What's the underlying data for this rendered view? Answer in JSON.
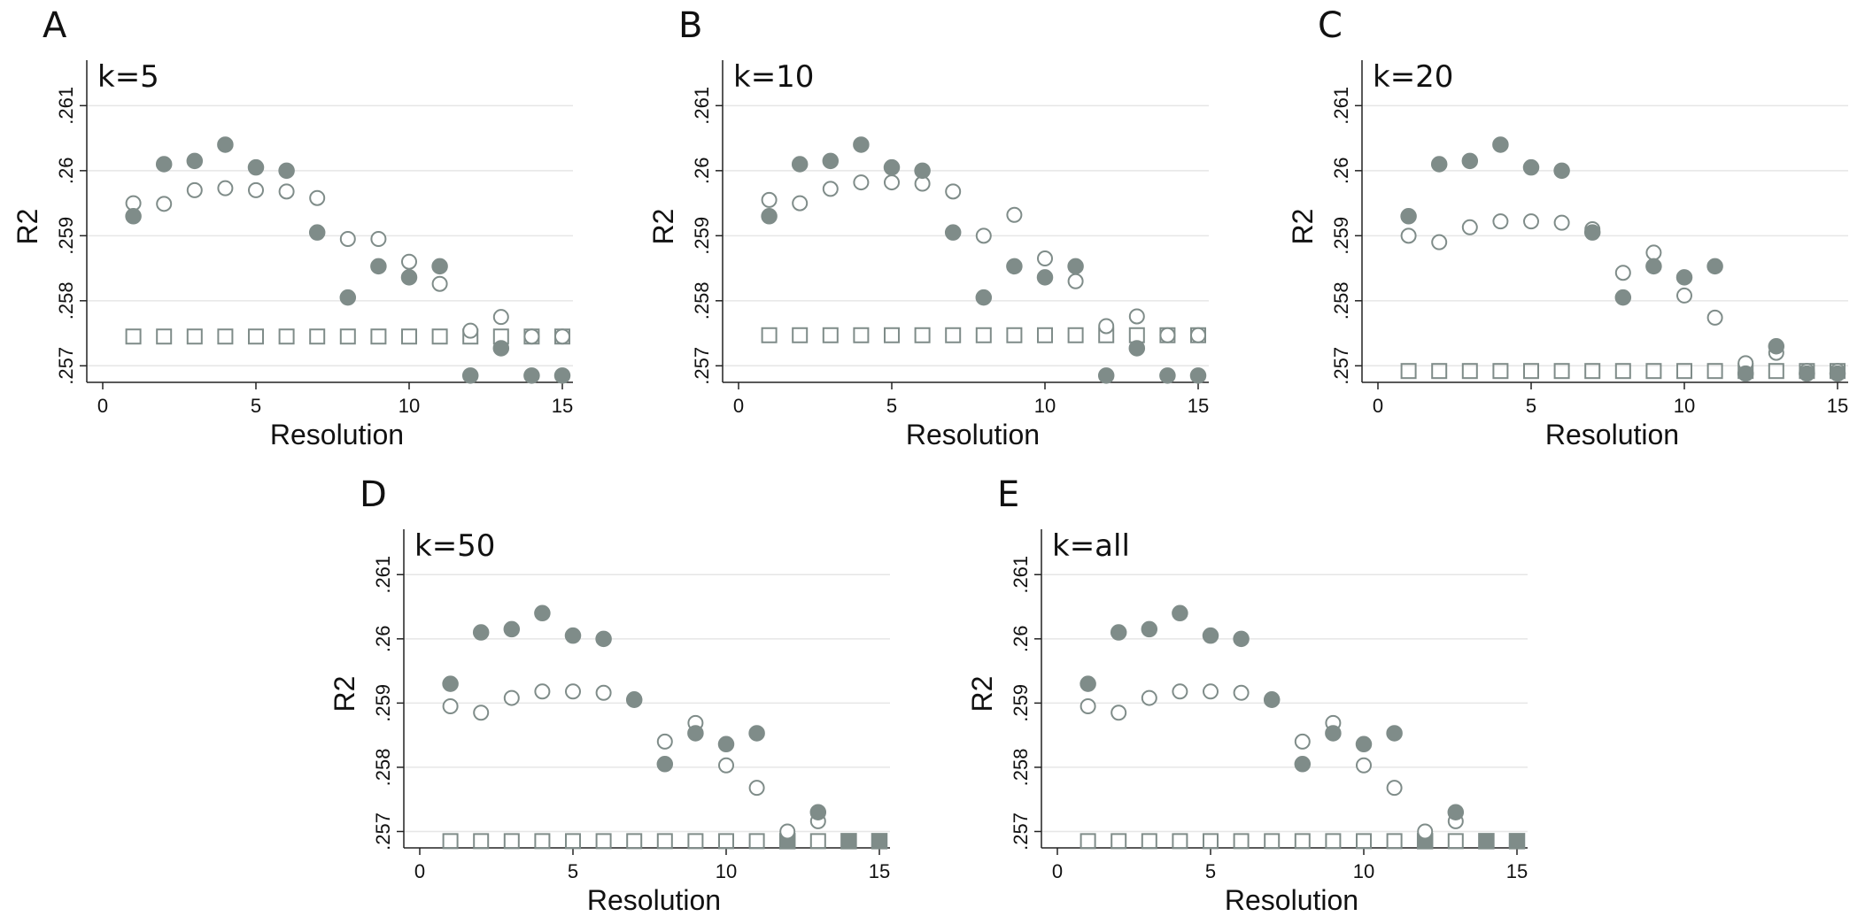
{
  "chart_data": [
    {
      "type": "scatter",
      "panel_label": "A",
      "title": "k=5",
      "xlabel": "Resolution",
      "ylabel": "R2",
      "xlim": [
        0,
        15
      ],
      "ylim": [
        0.2568,
        0.2611
      ],
      "xticks": [
        0,
        5,
        10,
        15
      ],
      "xtick_labels": [
        "0",
        "5",
        "10",
        "15"
      ],
      "yticks": [
        0.257,
        0.258,
        0.259,
        0.26,
        0.261
      ],
      "ytick_labels": [
        ".257",
        ".258",
        ".259",
        ".26",
        ".261"
      ],
      "x": [
        1,
        2,
        3,
        4,
        5,
        6,
        7,
        8,
        9,
        10,
        11,
        12,
        13,
        14,
        15
      ],
      "series": [
        {
          "name": "filled circle",
          "marker": "circle-filled",
          "values": [
            0.2593,
            0.2601,
            0.26015,
            0.2604,
            0.26005,
            0.26,
            0.25905,
            0.25805,
            0.25853,
            0.25836,
            0.25853,
            0.25685,
            0.25727,
            0.25685,
            0.25685
          ]
        },
        {
          "name": "open circle",
          "marker": "circle-open",
          "values": [
            0.2595,
            0.25949,
            0.2597,
            0.25973,
            0.2597,
            0.25968,
            0.25958,
            0.25895,
            0.25895,
            0.2586,
            0.25826,
            0.25754,
            0.25775,
            0.25745,
            0.25745
          ]
        },
        {
          "name": "open square",
          "marker": "square-open",
          "values": [
            0.25745,
            0.25745,
            0.25745,
            0.25745,
            0.25745,
            0.25745,
            0.25745,
            0.25745,
            0.25745,
            0.25745,
            0.25745,
            0.25745,
            0.25745,
            0.25745,
            0.25745
          ]
        }
      ]
    },
    {
      "type": "scatter",
      "panel_label": "B",
      "title": "k=10",
      "xlabel": "Resolution",
      "ylabel": "R2",
      "xlim": [
        0,
        15
      ],
      "ylim": [
        0.2568,
        0.2611
      ],
      "xticks": [
        0,
        5,
        10,
        15
      ],
      "xtick_labels": [
        "0",
        "5",
        "10",
        "15"
      ],
      "yticks": [
        0.257,
        0.258,
        0.259,
        0.26,
        0.261
      ],
      "ytick_labels": [
        ".257",
        ".258",
        ".259",
        ".26",
        ".261"
      ],
      "x": [
        1,
        2,
        3,
        4,
        5,
        6,
        7,
        8,
        9,
        10,
        11,
        12,
        13,
        14,
        15
      ],
      "series": [
        {
          "name": "filled circle",
          "marker": "circle-filled",
          "values": [
            0.2593,
            0.2601,
            0.26015,
            0.2604,
            0.26005,
            0.26,
            0.25905,
            0.25805,
            0.25853,
            0.25836,
            0.25853,
            0.25685,
            0.25727,
            0.25685,
            0.25685
          ]
        },
        {
          "name": "open circle",
          "marker": "circle-open",
          "values": [
            0.25955,
            0.2595,
            0.25972,
            0.25982,
            0.25982,
            0.2598,
            0.25968,
            0.259,
            0.25932,
            0.25865,
            0.2583,
            0.25761,
            0.25776,
            0.25747,
            0.25747
          ]
        },
        {
          "name": "open square",
          "marker": "square-open",
          "values": [
            0.25747,
            0.25747,
            0.25747,
            0.25747,
            0.25747,
            0.25747,
            0.25747,
            0.25747,
            0.25747,
            0.25747,
            0.25747,
            0.25747,
            0.25747,
            0.25747,
            0.25747
          ]
        }
      ]
    },
    {
      "type": "scatter",
      "panel_label": "C",
      "title": "k=20",
      "xlabel": "Resolution",
      "ylabel": "R2",
      "xlim": [
        0,
        15
      ],
      "ylim": [
        0.2568,
        0.2611
      ],
      "xticks": [
        0,
        5,
        10,
        15
      ],
      "xtick_labels": [
        "0",
        "5",
        "10",
        "15"
      ],
      "yticks": [
        0.257,
        0.258,
        0.259,
        0.26,
        0.261
      ],
      "ytick_labels": [
        ".257",
        ".258",
        ".259",
        ".26",
        ".261"
      ],
      "x": [
        1,
        2,
        3,
        4,
        5,
        6,
        7,
        8,
        9,
        10,
        11,
        12,
        13,
        14,
        15
      ],
      "series": [
        {
          "name": "filled circle",
          "marker": "circle-filled",
          "values": [
            0.2593,
            0.2601,
            0.26015,
            0.2604,
            0.26005,
            0.26,
            0.25905,
            0.25805,
            0.25853,
            0.25836,
            0.25853,
            0.25688,
            0.2573,
            0.25688,
            0.25688
          ]
        },
        {
          "name": "open circle",
          "marker": "circle-open",
          "values": [
            0.259,
            0.2589,
            0.25913,
            0.25922,
            0.25922,
            0.2592,
            0.2591,
            0.25843,
            0.25874,
            0.25808,
            0.25774,
            0.25704,
            0.2572,
            0.25692,
            0.25692
          ]
        },
        {
          "name": "open square",
          "marker": "square-open",
          "values": [
            0.25692,
            0.25692,
            0.25692,
            0.25692,
            0.25692,
            0.25692,
            0.25692,
            0.25692,
            0.25692,
            0.25692,
            0.25692,
            0.25692,
            0.25692,
            0.25692,
            0.25692
          ]
        }
      ]
    },
    {
      "type": "scatter",
      "panel_label": "D",
      "title": "k=50",
      "xlabel": "Resolution",
      "ylabel": "R2",
      "xlim": [
        0,
        15
      ],
      "ylim": [
        0.2568,
        0.2611
      ],
      "xticks": [
        0,
        5,
        10,
        15
      ],
      "xtick_labels": [
        "0",
        "5",
        "10",
        "15"
      ],
      "yticks": [
        0.257,
        0.258,
        0.259,
        0.26,
        0.261
      ],
      "ytick_labels": [
        ".257",
        ".258",
        ".259",
        ".26",
        ".261"
      ],
      "x": [
        1,
        2,
        3,
        4,
        5,
        6,
        7,
        8,
        9,
        10,
        11,
        12,
        13,
        14,
        15
      ],
      "series": [
        {
          "name": "filled circle",
          "marker": "circle-filled",
          "values": [
            0.2593,
            0.2601,
            0.26015,
            0.2604,
            0.26005,
            0.26,
            0.25905,
            0.25805,
            0.25853,
            0.25836,
            0.25853,
            null,
            0.2573,
            null,
            null
          ]
        },
        {
          "name": "open circle",
          "marker": "circle-open",
          "values": [
            0.25895,
            0.25885,
            0.25908,
            0.25918,
            0.25918,
            0.25916,
            0.25906,
            0.2584,
            0.25869,
            0.25803,
            0.25768,
            0.257,
            0.25716,
            null,
            null
          ]
        },
        {
          "name": "open square",
          "marker": "square-open",
          "values": [
            0.25685,
            0.25685,
            0.25685,
            0.25685,
            0.25685,
            0.25685,
            0.25685,
            0.25685,
            0.25685,
            0.25685,
            0.25685,
            null,
            0.25685,
            null,
            null
          ]
        },
        {
          "name": "filled square",
          "marker": "square-filled",
          "values": [
            null,
            null,
            null,
            null,
            null,
            null,
            null,
            null,
            null,
            null,
            null,
            0.25685,
            null,
            0.25685,
            0.25685
          ]
        }
      ]
    },
    {
      "type": "scatter",
      "panel_label": "E",
      "title": "k=all",
      "xlabel": "Resolution",
      "ylabel": "R2",
      "xlim": [
        0,
        15
      ],
      "ylim": [
        0.2568,
        0.2611
      ],
      "xticks": [
        0,
        5,
        10,
        15
      ],
      "xtick_labels": [
        "0",
        "5",
        "10",
        "15"
      ],
      "yticks": [
        0.257,
        0.258,
        0.259,
        0.26,
        0.261
      ],
      "ytick_labels": [
        ".257",
        ".258",
        ".259",
        ".26",
        ".261"
      ],
      "x": [
        1,
        2,
        3,
        4,
        5,
        6,
        7,
        8,
        9,
        10,
        11,
        12,
        13,
        14,
        15
      ],
      "series": [
        {
          "name": "filled circle",
          "marker": "circle-filled",
          "values": [
            0.2593,
            0.2601,
            0.26015,
            0.2604,
            0.26005,
            0.26,
            0.25905,
            0.25805,
            0.25853,
            0.25836,
            0.25853,
            null,
            0.2573,
            null,
            null
          ]
        },
        {
          "name": "open circle",
          "marker": "circle-open",
          "values": [
            0.25895,
            0.25885,
            0.25908,
            0.25918,
            0.25918,
            0.25916,
            0.25906,
            0.2584,
            0.25869,
            0.25803,
            0.25768,
            0.257,
            0.25716,
            null,
            null
          ]
        },
        {
          "name": "open square",
          "marker": "square-open",
          "values": [
            0.25685,
            0.25685,
            0.25685,
            0.25685,
            0.25685,
            0.25685,
            0.25685,
            0.25685,
            0.25685,
            0.25685,
            0.25685,
            null,
            0.25685,
            null,
            null
          ]
        },
        {
          "name": "filled square",
          "marker": "square-filled",
          "values": [
            null,
            null,
            null,
            null,
            null,
            null,
            null,
            null,
            null,
            null,
            null,
            0.25685,
            null,
            0.25685,
            0.25685
          ]
        }
      ]
    }
  ],
  "colors": {
    "marker": "#7f8c89",
    "axis": "#222222",
    "grid": "#e6e6e6"
  }
}
